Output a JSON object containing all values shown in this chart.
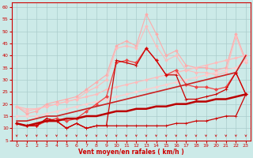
{
  "xlabel": "Vent moyen/en rafales ( km/h )",
  "xlim": [
    -0.5,
    23.5
  ],
  "ylim": [
    5,
    62
  ],
  "yticks": [
    5,
    10,
    15,
    20,
    25,
    30,
    35,
    40,
    45,
    50,
    55,
    60
  ],
  "xticks": [
    0,
    1,
    2,
    3,
    4,
    5,
    6,
    7,
    8,
    9,
    10,
    11,
    12,
    13,
    14,
    15,
    16,
    17,
    18,
    19,
    20,
    21,
    22,
    23
  ],
  "bg_color": "#cceae8",
  "grid_color": "#aacccc",
  "series": [
    {
      "y": [
        19,
        16,
        17,
        20,
        21,
        22,
        23,
        26,
        29,
        32,
        44,
        46,
        44,
        57,
        49,
        40,
        42,
        36,
        35,
        35,
        34,
        35,
        49,
        38
      ],
      "color": "#ffaaaa",
      "lw": 0.8,
      "marker": "D",
      "ms": 1.8,
      "zorder": 2
    },
    {
      "y": [
        19,
        17,
        18,
        19,
        20,
        21,
        22,
        25,
        27,
        30,
        43,
        44,
        43,
        52,
        44,
        38,
        40,
        34,
        33,
        33,
        32,
        33,
        48,
        37
      ],
      "color": "#ffbbbb",
      "lw": 0.8,
      "marker": "D",
      "ms": 1.8,
      "zorder": 2
    },
    {
      "y": [
        19,
        18,
        18,
        19,
        20,
        21,
        22,
        23,
        24,
        26,
        27,
        28,
        29,
        30,
        31,
        32,
        33,
        34,
        35,
        36,
        37,
        38,
        39,
        40
      ],
      "color": "#ffbbbb",
      "lw": 0.9,
      "marker": "D",
      "ms": 1.8,
      "zorder": 2
    },
    {
      "y": [
        15,
        15,
        15,
        16,
        17,
        18,
        19,
        20,
        21,
        22,
        23,
        24,
        25,
        26,
        27,
        28,
        29,
        30,
        31,
        32,
        33,
        34,
        35,
        38
      ],
      "color": "#ffcccc",
      "lw": 0.9,
      "marker": "D",
      "ms": 1.8,
      "zorder": 2
    },
    {
      "y": [
        12,
        11,
        11,
        13,
        14,
        13,
        14,
        17,
        20,
        23,
        37,
        38,
        37,
        43,
        38,
        32,
        34,
        28,
        27,
        27,
        26,
        27,
        33,
        24
      ],
      "color": "#ee4444",
      "lw": 0.9,
      "marker": "D",
      "ms": 2.0,
      "zorder": 3
    },
    {
      "y": [
        13,
        13,
        14,
        15,
        15,
        16,
        17,
        18,
        19,
        20,
        21,
        22,
        23,
        24,
        25,
        26,
        27,
        28,
        29,
        30,
        31,
        32,
        33,
        40
      ],
      "color": "#cc2222",
      "lw": 1.2,
      "marker": null,
      "ms": 0,
      "zorder": 4
    },
    {
      "y": [
        12,
        11,
        12,
        13,
        13,
        14,
        14,
        15,
        15,
        16,
        17,
        17,
        18,
        18,
        19,
        19,
        20,
        20,
        21,
        21,
        22,
        22,
        23,
        24
      ],
      "color": "#bb0000",
      "lw": 1.8,
      "marker": null,
      "ms": 0,
      "zorder": 5
    },
    {
      "y": [
        12,
        11,
        11,
        14,
        13,
        10,
        12,
        10,
        11,
        11,
        11,
        11,
        11,
        11,
        11,
        11,
        12,
        12,
        13,
        13,
        14,
        15,
        15,
        24
      ],
      "color": "#cc0000",
      "lw": 0.9,
      "marker": "+",
      "ms": 3.0,
      "zorder": 3
    },
    {
      "y": [
        12,
        11,
        11,
        14,
        13,
        10,
        12,
        10,
        11,
        11,
        38,
        37,
        36,
        43,
        38,
        32,
        32,
        22,
        22,
        23,
        24,
        26,
        33,
        24
      ],
      "color": "#cc0000",
      "lw": 0.9,
      "marker": "+",
      "ms": 3.0,
      "zorder": 3
    }
  ],
  "wind_arrows": {
    "x": [
      0,
      1,
      2,
      3,
      4,
      5,
      6,
      7,
      8,
      9,
      10,
      11,
      12,
      13,
      14,
      15,
      16,
      17,
      18,
      19,
      20,
      21,
      22,
      23
    ],
    "y": 7.5,
    "color": "#cc2222",
    "size": 4.5
  }
}
